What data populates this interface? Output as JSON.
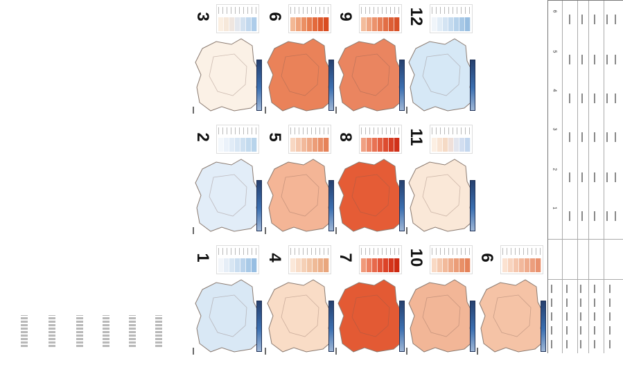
{
  "document": {
    "panels": [
      {
        "label": "1",
        "tone": "cool",
        "map_fill": "#d9e8f5",
        "legend": [
          "#f3f6fa",
          "#e6eef7",
          "#d8e6f3",
          "#c9ddf0",
          "#b9d3ec",
          "#a8c9e7",
          "#97bee2"
        ]
      },
      {
        "label": "2",
        "tone": "cool",
        "map_fill": "#e2edf8",
        "legend": [
          "#f4f8fc",
          "#ebf2fa",
          "#e1ecf7",
          "#d7e6f4",
          "#cde0f1",
          "#c2daee",
          "#b8d4eb"
        ]
      },
      {
        "label": "3",
        "tone": "neutral",
        "map_fill": "#fbf1e6",
        "legend": [
          "#fbefe2",
          "#f6e8da",
          "#efe6e0",
          "#e3e7ee",
          "#d2e1f0",
          "#c1d8ee",
          "#aecdea"
        ]
      },
      {
        "label": "4",
        "tone": "warm",
        "map_fill": "#f9dcc6",
        "legend": [
          "#fbe8d9",
          "#f8dcc7",
          "#f5d0b6",
          "#f2c5a6",
          "#efba97",
          "#ecb08a",
          "#e9a67d"
        ]
      },
      {
        "label": "5",
        "tone": "warm",
        "map_fill": "#f4b596",
        "legend": [
          "#f8d7c2",
          "#f5c8ae",
          "#f2b99b",
          "#efab89",
          "#ec9d78",
          "#e98f68",
          "#e68259"
        ]
      },
      {
        "label": "6",
        "tone": "warm",
        "map_fill": "#ea8259",
        "legend": [
          "#f3b895",
          "#efa37b",
          "#eb8f63",
          "#e77c4e",
          "#e36a3c",
          "#de5a2d",
          "#d94c21"
        ]
      },
      {
        "label": "7",
        "tone": "hot",
        "map_fill": "#e35a34",
        "legend": [
          "#f0997a",
          "#ec8061",
          "#e7694b",
          "#e25438",
          "#dc4328",
          "#d5351c",
          "#cd2a12"
        ]
      },
      {
        "label": "8",
        "tone": "hot",
        "map_fill": "#e55c36",
        "legend": [
          "#f0a083",
          "#ec8869",
          "#e87253",
          "#e35e40",
          "#dd4c30",
          "#d73d23",
          "#d03019"
        ]
      },
      {
        "label": "9",
        "tone": "warm",
        "map_fill": "#ea8560",
        "legend": [
          "#f3bc9c",
          "#efa683",
          "#eb926c",
          "#e77f57",
          "#e26e45",
          "#dd5f36",
          "#d85229"
        ]
      },
      {
        "label": "10",
        "tone": "warm",
        "map_fill": "#f2b697",
        "legend": [
          "#f9d9c4",
          "#f5c9af",
          "#f2ba9b",
          "#eeab89",
          "#eb9d78",
          "#e89068",
          "#e5835a"
        ]
      },
      {
        "label": "11",
        "tone": "neutral",
        "map_fill": "#fae8d8",
        "legend": [
          "#fcefe3",
          "#f9e4d3",
          "#f5dac5",
          "#efe0da",
          "#e2e5ee",
          "#d2def0",
          "#c2d6ee"
        ]
      },
      {
        "label": "12",
        "tone": "cool",
        "map_fill": "#d6e8f6",
        "legend": [
          "#f0f5fa",
          "#e2edf7",
          "#d4e4f3",
          "#c5dbef",
          "#b6d2eb",
          "#a7c8e6",
          "#98bee1"
        ]
      },
      {
        "label": "6",
        "tone": "warm",
        "map_fill": "#f5c3a6",
        "legend": [
          "#fbe2d1",
          "#f8d4bf",
          "#f5c6ad",
          "#f2b89c",
          "#efab8c",
          "#ec9e7d",
          "#e9926f"
        ]
      }
    ],
    "scale_bar_label": "",
    "table": {
      "columns": [
        "1",
        "2",
        "3",
        "4",
        "5",
        "6"
      ]
    }
  }
}
